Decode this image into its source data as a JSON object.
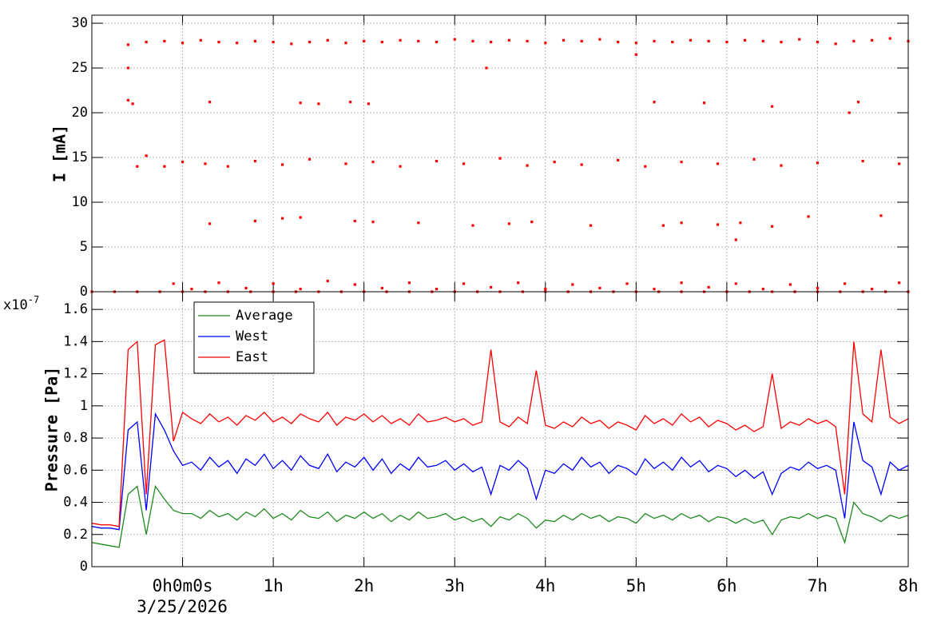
{
  "chart_data": [
    {
      "type": "scatter",
      "y_label": "I [mA]",
      "color": "#ff0000",
      "xlim": [
        -1,
        8
      ],
      "ylim": [
        0,
        30.9
      ],
      "yticks": [
        0,
        5,
        10,
        15,
        20,
        25,
        30
      ],
      "xticks": [
        0,
        1,
        2,
        3,
        4,
        5,
        6,
        7,
        8
      ],
      "grid": true,
      "x": [
        -0.6,
        -0.4,
        -0.2,
        0,
        0.2,
        0.4,
        0.6,
        0.8,
        1,
        1.2,
        1.4,
        1.6,
        1.8,
        2,
        2.2,
        2.4,
        2.6,
        2.8,
        3,
        3.2,
        3.4,
        3.6,
        3.8,
        4,
        4.2,
        4.4,
        4.6,
        4.8,
        5,
        5.2,
        5.4,
        5.6,
        5.8,
        6,
        6.2,
        6.4,
        6.6,
        6.8,
        7,
        7.2,
        7.4,
        7.6,
        7.8,
        8,
        -0.6,
        -0.6,
        -0.55,
        -0.4,
        -0.5,
        0.3,
        1.3,
        1.5,
        1.85,
        2.05,
        3.35,
        5.2,
        5.75,
        6.5,
        7.35,
        7.45,
        5.0,
        -0.2,
        0,
        0.25,
        0.5,
        0.8,
        1.1,
        1.4,
        1.8,
        2.1,
        2.4,
        2.8,
        3.1,
        3.5,
        3.8,
        4.1,
        4.4,
        4.8,
        5.1,
        5.5,
        5.9,
        6.3,
        6.6,
        7.0,
        7.5,
        7.9,
        0.3,
        0.8,
        1.1,
        1.3,
        1.9,
        2.1,
        2.6,
        3.2,
        3.6,
        3.85,
        4.5,
        5.3,
        5.5,
        5.9,
        6.1,
        6.15,
        6.5,
        6.9,
        7.7,
        -0.1,
        0.1,
        0.4,
        0.7,
        1.0,
        1.3,
        1.6,
        1.9,
        2.2,
        2.5,
        2.8,
        3.1,
        3.4,
        3.7,
        4.0,
        4.3,
        4.6,
        4.9,
        5.2,
        5.5,
        5.8,
        6.1,
        6.4,
        6.7,
        7.0,
        7.3,
        7.6,
        7.9,
        -1,
        -0.75,
        -0.5,
        -0.25,
        0,
        0.25,
        0.5,
        0.75,
        1,
        1.25,
        1.5,
        1.75,
        2,
        2.25,
        2.5,
        2.75,
        3,
        3.25,
        3.5,
        3.75,
        4,
        4.25,
        4.5,
        4.75,
        5,
        5.25,
        5.5,
        5.75,
        6,
        6.25,
        6.5,
        6.75,
        7,
        7.25,
        7.5,
        7.75,
        8
      ],
      "values": [
        27.6,
        27.9,
        28.0,
        27.8,
        28.1,
        27.9,
        27.8,
        28.0,
        27.9,
        27.7,
        27.9,
        28.1,
        27.8,
        28.0,
        27.9,
        28.1,
        28.0,
        27.9,
        28.2,
        28.0,
        27.9,
        28.1,
        28.0,
        27.8,
        28.1,
        28.0,
        28.2,
        27.9,
        27.8,
        28.0,
        27.9,
        28.1,
        28.0,
        27.9,
        28.1,
        28.0,
        27.9,
        28.2,
        27.9,
        27.7,
        28.0,
        28.1,
        28.3,
        28.0,
        25,
        21.4,
        21,
        15.2,
        14,
        21.2,
        21.1,
        21,
        21.2,
        21,
        25,
        21.2,
        21.1,
        20.7,
        20,
        21.2,
        26.5,
        14,
        14.5,
        14.3,
        14,
        14.6,
        14.2,
        14.8,
        14.3,
        14.5,
        14,
        14.6,
        14.3,
        14.9,
        14.1,
        14.5,
        14.2,
        14.7,
        14,
        14.5,
        14.3,
        14.8,
        14.1,
        14.4,
        14.6,
        14.3,
        7.6,
        7.9,
        8.2,
        8.3,
        7.9,
        7.8,
        7.7,
        7.4,
        7.6,
        7.8,
        7.4,
        7.4,
        7.7,
        7.5,
        5.8,
        7.7,
        7.3,
        8.4,
        8.5,
        0.9,
        0.3,
        1.0,
        0.4,
        0.9,
        0.3,
        1.2,
        0.8,
        0.4,
        1.0,
        0.3,
        0.9,
        0.5,
        1.0,
        0.3,
        0.8,
        0.4,
        0.9,
        0.3,
        1.0,
        0.5,
        0.9,
        0.3,
        0.8,
        0.4,
        0.9,
        0.3,
        1.0,
        0,
        0,
        0,
        0,
        0,
        0,
        0,
        0,
        0,
        0,
        0,
        0,
        0,
        0,
        0,
        0,
        0,
        0,
        0,
        0,
        0,
        0,
        0,
        0,
        0,
        0,
        0,
        0,
        0,
        0,
        0,
        0,
        0,
        0,
        0,
        0,
        0
      ]
    },
    {
      "type": "line",
      "y_label": "Pressure [Pa]",
      "y_scale_label": {
        "base": "x10",
        "exponent": "-7"
      },
      "x_date_label": "3/25/2026",
      "xlim": [
        -1,
        8
      ],
      "ylim": [
        0,
        1.71
      ],
      "yticks": [
        0,
        0.2,
        0.4,
        0.6,
        0.8,
        1,
        1.2,
        1.4,
        1.6
      ],
      "grid": true,
      "xticks": [
        {
          "value": 0,
          "label": "0h0m0s"
        },
        {
          "value": 1,
          "label": "1h"
        },
        {
          "value": 2,
          "label": "2h"
        },
        {
          "value": 3,
          "label": "3h"
        },
        {
          "value": 4,
          "label": "4h"
        },
        {
          "value": 5,
          "label": "5h"
        },
        {
          "value": 6,
          "label": "6h"
        },
        {
          "value": 7,
          "label": "7h"
        },
        {
          "value": 8,
          "label": "8h"
        }
      ],
      "legend": "top-left",
      "x": [
        -1,
        -0.9,
        -0.8,
        -0.7,
        -0.6,
        -0.5,
        -0.4,
        -0.3,
        -0.2,
        -0.1,
        0,
        0.1,
        0.2,
        0.3,
        0.4,
        0.5,
        0.6,
        0.7,
        0.8,
        0.9,
        1,
        1.1,
        1.2,
        1.3,
        1.4,
        1.5,
        1.6,
        1.7,
        1.8,
        1.9,
        2,
        2.1,
        2.2,
        2.3,
        2.4,
        2.5,
        2.6,
        2.7,
        2.8,
        2.9,
        3,
        3.1,
        3.2,
        3.3,
        3.4,
        3.5,
        3.6,
        3.7,
        3.8,
        3.9,
        4,
        4.1,
        4.2,
        4.3,
        4.4,
        4.5,
        4.6,
        4.7,
        4.8,
        4.9,
        5,
        5.1,
        5.2,
        5.3,
        5.4,
        5.5,
        5.6,
        5.7,
        5.8,
        5.9,
        6,
        6.1,
        6.2,
        6.3,
        6.4,
        6.5,
        6.6,
        6.7,
        6.8,
        6.9,
        7,
        7.1,
        7.2,
        7.3,
        7.4,
        7.5,
        7.6,
        7.7,
        7.8,
        7.9,
        8
      ],
      "series": [
        {
          "name": "Average",
          "color": "#1f8a1f",
          "values": [
            0.15,
            0.14,
            0.13,
            0.12,
            0.45,
            0.5,
            0.2,
            0.5,
            0.42,
            0.35,
            0.33,
            0.33,
            0.3,
            0.35,
            0.31,
            0.33,
            0.29,
            0.34,
            0.31,
            0.36,
            0.3,
            0.33,
            0.29,
            0.35,
            0.31,
            0.3,
            0.34,
            0.28,
            0.32,
            0.3,
            0.34,
            0.3,
            0.33,
            0.28,
            0.32,
            0.29,
            0.34,
            0.3,
            0.31,
            0.33,
            0.29,
            0.31,
            0.28,
            0.3,
            0.25,
            0.31,
            0.29,
            0.33,
            0.3,
            0.24,
            0.29,
            0.28,
            0.32,
            0.29,
            0.33,
            0.3,
            0.32,
            0.28,
            0.31,
            0.3,
            0.27,
            0.33,
            0.3,
            0.32,
            0.29,
            0.33,
            0.3,
            0.32,
            0.28,
            0.31,
            0.3,
            0.27,
            0.3,
            0.27,
            0.29,
            0.2,
            0.29,
            0.31,
            0.3,
            0.33,
            0.3,
            0.32,
            0.3,
            0.15,
            0.4,
            0.33,
            0.31,
            0.28,
            0.32,
            0.3,
            0.32
          ]
        },
        {
          "name": "West",
          "color": "#0000ff",
          "values": [
            0.25,
            0.24,
            0.24,
            0.23,
            0.85,
            0.9,
            0.35,
            0.95,
            0.85,
            0.72,
            0.63,
            0.65,
            0.6,
            0.68,
            0.62,
            0.66,
            0.58,
            0.67,
            0.63,
            0.7,
            0.61,
            0.66,
            0.6,
            0.69,
            0.63,
            0.61,
            0.7,
            0.59,
            0.65,
            0.62,
            0.68,
            0.6,
            0.67,
            0.58,
            0.64,
            0.6,
            0.68,
            0.62,
            0.63,
            0.66,
            0.6,
            0.64,
            0.59,
            0.62,
            0.45,
            0.63,
            0.6,
            0.66,
            0.61,
            0.42,
            0.6,
            0.58,
            0.64,
            0.6,
            0.68,
            0.62,
            0.65,
            0.58,
            0.63,
            0.61,
            0.57,
            0.67,
            0.61,
            0.65,
            0.6,
            0.68,
            0.62,
            0.66,
            0.59,
            0.63,
            0.61,
            0.56,
            0.6,
            0.55,
            0.59,
            0.45,
            0.58,
            0.62,
            0.6,
            0.65,
            0.61,
            0.63,
            0.6,
            0.3,
            0.9,
            0.66,
            0.62,
            0.45,
            0.65,
            0.6,
            0.63
          ]
        },
        {
          "name": "East",
          "color": "#ff0000",
          "values": [
            0.27,
            0.26,
            0.26,
            0.25,
            1.35,
            1.4,
            0.45,
            1.38,
            1.41,
            0.78,
            0.96,
            0.92,
            0.89,
            0.95,
            0.9,
            0.93,
            0.88,
            0.94,
            0.91,
            0.96,
            0.9,
            0.93,
            0.89,
            0.95,
            0.92,
            0.9,
            0.96,
            0.88,
            0.93,
            0.91,
            0.95,
            0.9,
            0.94,
            0.89,
            0.92,
            0.88,
            0.95,
            0.9,
            0.91,
            0.93,
            0.9,
            0.92,
            0.88,
            0.9,
            1.35,
            0.9,
            0.87,
            0.93,
            0.89,
            1.22,
            0.88,
            0.86,
            0.9,
            0.87,
            0.93,
            0.89,
            0.91,
            0.86,
            0.9,
            0.88,
            0.85,
            0.94,
            0.89,
            0.92,
            0.88,
            0.95,
            0.9,
            0.93,
            0.87,
            0.91,
            0.89,
            0.85,
            0.88,
            0.84,
            0.87,
            1.2,
            0.86,
            0.9,
            0.88,
            0.92,
            0.89,
            0.91,
            0.87,
            0.45,
            1.4,
            0.95,
            0.9,
            1.35,
            0.93,
            0.89,
            0.92
          ]
        }
      ]
    }
  ]
}
